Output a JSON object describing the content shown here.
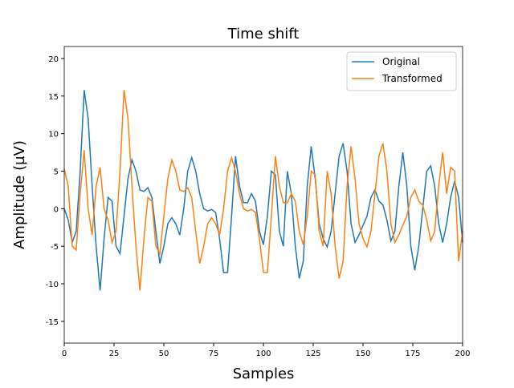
{
  "chart_data": {
    "type": "line",
    "title": "Time shift",
    "xlabel": "Samples",
    "ylabel": "Amplitude (µV)",
    "x": [
      0,
      2,
      4,
      6,
      8,
      10,
      12,
      14,
      16,
      18,
      20,
      22,
      24,
      26,
      28,
      30,
      32,
      34,
      36,
      38,
      40,
      42,
      44,
      46,
      48,
      50,
      52,
      54,
      56,
      58,
      60,
      62,
      64,
      66,
      68,
      70,
      72,
      74,
      76,
      78,
      80,
      82,
      84,
      86,
      88,
      90,
      92,
      94,
      96,
      98,
      100,
      102,
      104,
      106,
      108,
      110,
      112,
      114,
      116,
      118,
      120,
      122,
      124,
      126,
      128,
      130,
      132,
      134,
      136,
      138,
      140,
      142,
      144,
      146,
      148,
      150,
      152,
      154,
      156,
      158,
      160,
      162,
      164,
      166,
      168,
      170,
      172,
      174,
      176,
      178,
      180,
      182,
      184,
      186,
      188,
      190,
      192,
      194,
      196,
      198,
      200
    ],
    "series": [
      {
        "name": "Original",
        "color": "#1f77b4",
        "values": [
          0,
          -1.5,
          -4.5,
          -3,
          5,
          15.8,
          12,
          3,
          -5,
          -10.9,
          -4,
          1.5,
          1,
          -5,
          -6,
          -1,
          4,
          6.5,
          5,
          2.5,
          2.3,
          2.8,
          1.5,
          -3,
          -7.3,
          -5,
          -2,
          -1.2,
          -2,
          -3.5,
          0,
          5,
          6.8,
          5,
          2,
          0,
          -0.3,
          -0.1,
          -0.5,
          -4,
          -8.5,
          -8.5,
          -1,
          7,
          3,
          0.8,
          0.8,
          2,
          1,
          -3,
          -4.8,
          -1,
          5,
          4.5,
          -3,
          -5,
          5,
          2,
          -5,
          -9.3,
          -7,
          3,
          8.3,
          4,
          -2,
          -4,
          -5.1,
          -3,
          2,
          7,
          8.7,
          5,
          -2,
          -4.5,
          -3.5,
          -2.2,
          -1,
          1.5,
          2.5,
          1,
          0.5,
          -1.5,
          -4.3,
          -3,
          3,
          7.5,
          3,
          -5,
          -8.2,
          -5,
          0,
          5,
          5.7,
          3,
          -2,
          -4.5,
          -2,
          1.5,
          3.7,
          1.5,
          -4.5
        ]
      },
      {
        "name": "Transformed",
        "color": "#ff7f0e",
        "values": [
          5.3,
          3,
          -5,
          -5.5,
          2,
          7.8,
          0,
          -3.5,
          3,
          5.5,
          0,
          -1.5,
          -4.5,
          -3,
          5,
          15.8,
          12,
          3,
          -5,
          -10.9,
          -4,
          1.5,
          1,
          -5,
          -6,
          -1,
          4,
          6.5,
          5,
          2.5,
          2.3,
          2.8,
          1.5,
          -3,
          -7.3,
          -5,
          -2,
          -1.2,
          -2,
          -3.5,
          0,
          5,
          6.8,
          5,
          2,
          0,
          -0.3,
          -0.1,
          -0.5,
          -4,
          -8.5,
          -8.5,
          -1,
          7,
          3,
          0.8,
          0.8,
          2,
          1,
          -3,
          -4.8,
          -1,
          5,
          4.5,
          -3,
          -5,
          5,
          2,
          -5,
          -9.3,
          -7,
          3,
          8.3,
          4,
          -2,
          -4,
          -5.1,
          -3,
          2,
          7,
          8.7,
          5,
          -2,
          -4.5,
          -3.5,
          -2.2,
          -1,
          1.5,
          2.5,
          1,
          0.5,
          -1.5,
          -4.3,
          -3,
          3,
          7.5,
          2,
          5.5,
          5,
          -7,
          -3
        ]
      }
    ],
    "xlim": [
      0,
      200
    ],
    "ylim": [
      -17.9,
      21.6
    ],
    "xticks": [
      0,
      25,
      50,
      75,
      100,
      125,
      150,
      175,
      200
    ],
    "yticks": [
      -15,
      -10,
      -5,
      0,
      5,
      10,
      15,
      20
    ],
    "legend": "upper right"
  }
}
